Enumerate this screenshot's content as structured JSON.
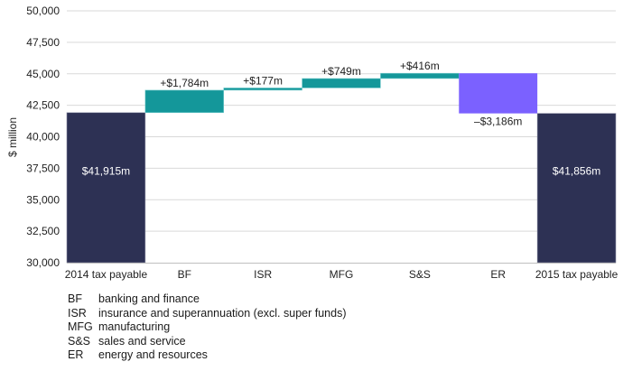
{
  "chart_data": {
    "type": "waterfall",
    "title": "",
    "xlabel": "",
    "ylabel": "$ million",
    "ylim": [
      30000,
      50000
    ],
    "yticks": [
      30000,
      32500,
      35000,
      37500,
      40000,
      42500,
      45000,
      47500,
      50000
    ],
    "ytick_labels": [
      "30,000",
      "32,500",
      "35,000",
      "37,500",
      "40,000",
      "42,500",
      "45,000",
      "47,500",
      "50,000"
    ],
    "grid": true,
    "categories": [
      "2014 tax payable",
      "BF",
      "ISR",
      "MFG",
      "S&S",
      "ER",
      "2015 tax payable"
    ],
    "bars": [
      {
        "category": "2014 tax payable",
        "kind": "total",
        "value": 41915,
        "label": "$41,915m"
      },
      {
        "category": "BF",
        "kind": "increase",
        "value": 1784,
        "label": "+$1,784m"
      },
      {
        "category": "ISR",
        "kind": "increase",
        "value": 177,
        "label": "+$177m"
      },
      {
        "category": "MFG",
        "kind": "increase",
        "value": 749,
        "label": "+$749m"
      },
      {
        "category": "S&S",
        "kind": "increase",
        "value": 416,
        "label": "+$416m"
      },
      {
        "category": "ER",
        "kind": "decrease",
        "value": -3186,
        "label": "–$3,186m"
      },
      {
        "category": "2015 tax payable",
        "kind": "total",
        "value": 41856,
        "label": "$41,856m"
      }
    ],
    "colors": {
      "total": "#2d3154",
      "increase": "#14979a",
      "decrease": "#7b61ff",
      "grid": "#d9d9d9",
      "axis": "#bfbfbf"
    }
  },
  "legend": [
    {
      "abbr": "BF",
      "text": "banking and finance"
    },
    {
      "abbr": "ISR",
      "text": "insurance and superannuation (excl. super funds)"
    },
    {
      "abbr": "MFG",
      "text": "manufacturing"
    },
    {
      "abbr": "S&S",
      "text": "sales and service"
    },
    {
      "abbr": "ER",
      "text": "energy and resources"
    }
  ]
}
